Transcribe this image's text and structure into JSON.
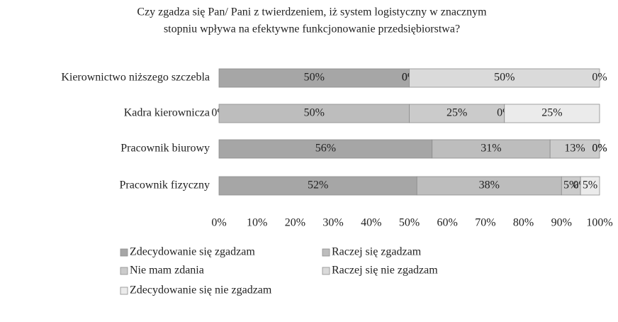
{
  "chart_data": {
    "type": "stacked_barh",
    "title": [
      "Czy zgadza się Pan/ Pani z twierdzeniem, iż system logistyczny w znacznym",
      "stopniu wpływa na efektywne funkcjonowanie przedsiębiorstwa?"
    ],
    "categories": [
      "Kierownictwo niższego szczebla",
      "Kadra kierownicza",
      "Pracownik biurowy",
      "Pracownik fizyczny"
    ],
    "series": [
      {
        "name": "Zdecydowanie się zgadzam",
        "color": "#a6a6a6",
        "values": [
          50,
          0,
          56,
          52
        ],
        "value_labels": [
          "50%",
          "0%",
          "56%",
          "52%"
        ]
      },
      {
        "name": "Raczej się zgadzam",
        "color": "#bdbdbd",
        "values": [
          0,
          50,
          31,
          38
        ],
        "value_labels": [
          "0%",
          "50%",
          "31%",
          "38%"
        ]
      },
      {
        "name": "Nie mam zdania",
        "color": "#cbcbcb",
        "values": [
          0,
          25,
          13,
          5
        ],
        "value_labels": [
          "0%",
          "25%",
          "13%",
          "5%"
        ]
      },
      {
        "name": "Raczej się nie zgadzam",
        "color": "#dadada",
        "values": [
          50,
          0,
          0,
          0
        ],
        "value_labels": [
          "50%",
          "0%",
          "0%",
          "0%"
        ]
      },
      {
        "name": "Zdecydowanie się nie zgadzam",
        "color": "#ebebeb",
        "values": [
          0,
          25,
          0,
          5
        ],
        "value_labels": [
          "0%",
          "25%",
          "0%",
          "5%"
        ]
      }
    ],
    "xlim": [
      0,
      100
    ],
    "xticks": [
      {
        "value": 0,
        "label": "0%"
      },
      {
        "value": 10,
        "label": "10%"
      },
      {
        "value": 20,
        "label": "20%"
      },
      {
        "value": 30,
        "label": "30%"
      },
      {
        "value": 40,
        "label": "40%"
      },
      {
        "value": 50,
        "label": "50%"
      },
      {
        "value": 60,
        "label": "60%"
      },
      {
        "value": 70,
        "label": "70%"
      },
      {
        "value": 80,
        "label": "80%"
      },
      {
        "value": 90,
        "label": "90%"
      },
      {
        "value": 100,
        "label": "100%"
      }
    ],
    "legend": "bottom"
  }
}
